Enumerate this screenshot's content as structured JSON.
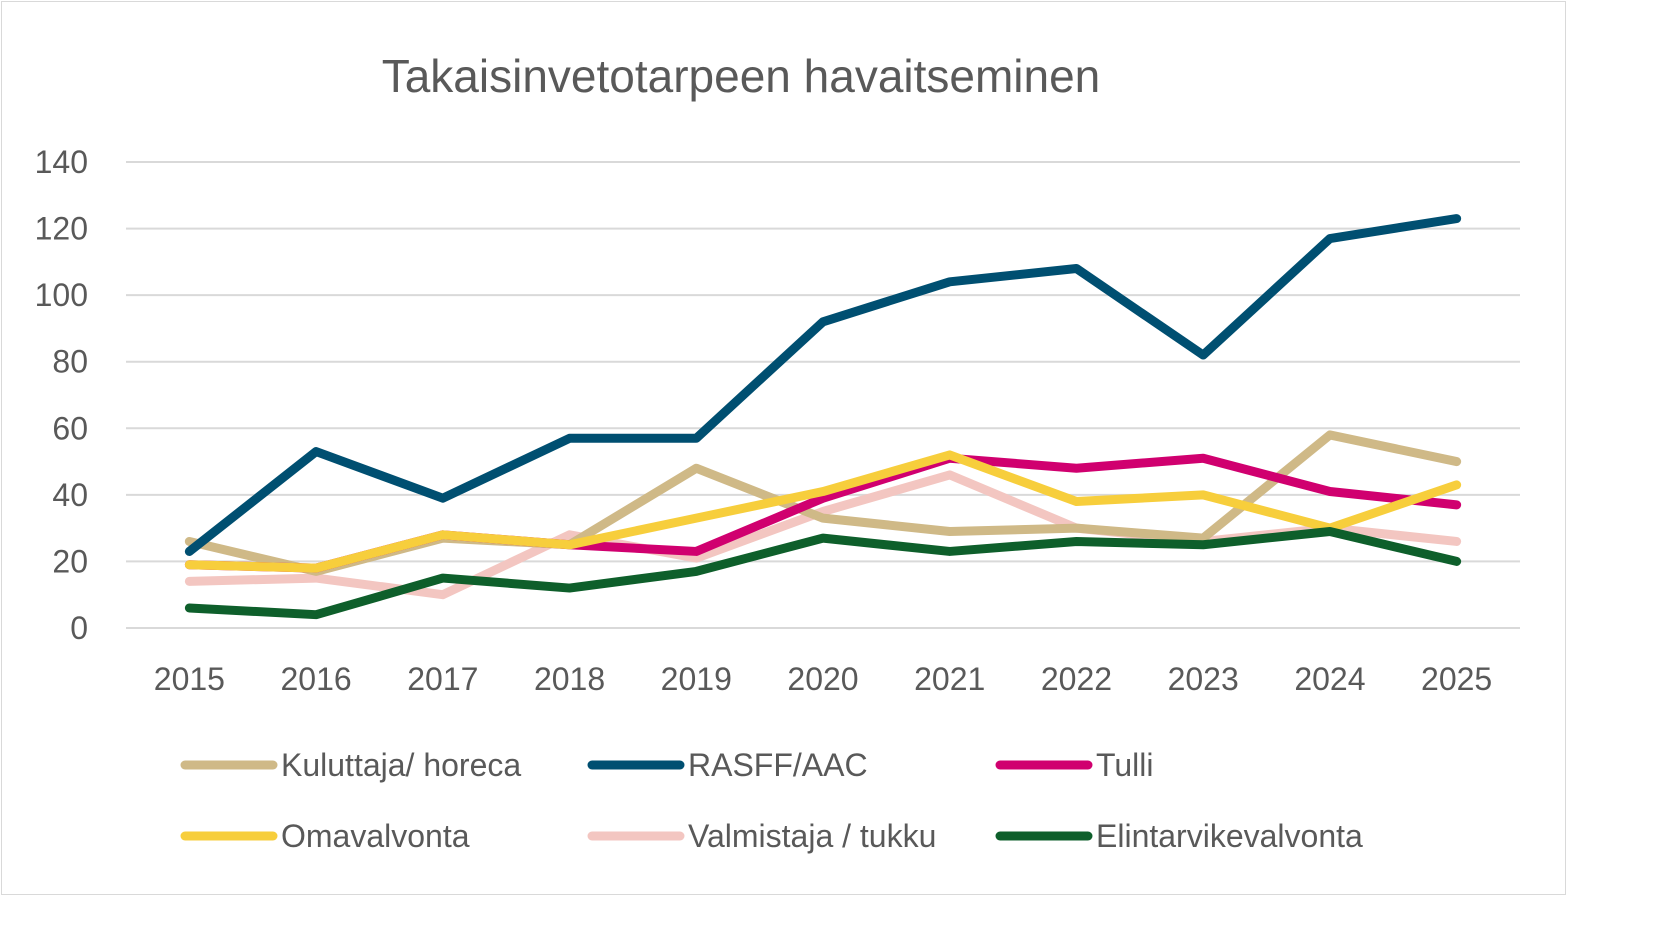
{
  "chart_data": {
    "type": "line",
    "title": "Takaisinvetotarpeen havaitseminen",
    "categories": [
      "2015",
      "2016",
      "2017",
      "2018",
      "2019",
      "2020",
      "2021",
      "2022",
      "2023",
      "2024",
      "2025"
    ],
    "ylim": [
      0,
      140
    ],
    "yticks": [
      0,
      20,
      40,
      60,
      80,
      100,
      120,
      140
    ],
    "grid": true,
    "legend_position": "bottom",
    "series": [
      {
        "name": "Kuluttaja/ horeca",
        "color": "#cfb987",
        "values": [
          26,
          17,
          27,
          25,
          48,
          33,
          29,
          30,
          27,
          58,
          50
        ]
      },
      {
        "name": "RASFF/AAC",
        "color": "#004f71",
        "values": [
          23,
          53,
          39,
          57,
          57,
          92,
          104,
          108,
          82,
          117,
          123
        ]
      },
      {
        "name": "Tulli",
        "color": "#d0006f",
        "values": [
          19,
          18,
          28,
          25,
          23,
          39,
          51,
          48,
          51,
          41,
          37
        ]
      },
      {
        "name": "Omavalvonta",
        "color": "#f7ce3c",
        "values": [
          19,
          18,
          28,
          25,
          33,
          41,
          52,
          38,
          40,
          30,
          43
        ]
      },
      {
        "name": "Valmistaja / tukku",
        "color": "#f3c6c1",
        "values": [
          14,
          15,
          10,
          28,
          21,
          35,
          46,
          30,
          26,
          30,
          26
        ]
      },
      {
        "name": "Elintarvikevalvonta",
        "color": "#0e5f2b",
        "values": [
          6,
          4,
          15,
          12,
          17,
          27,
          23,
          26,
          25,
          29,
          20
        ]
      }
    ]
  }
}
